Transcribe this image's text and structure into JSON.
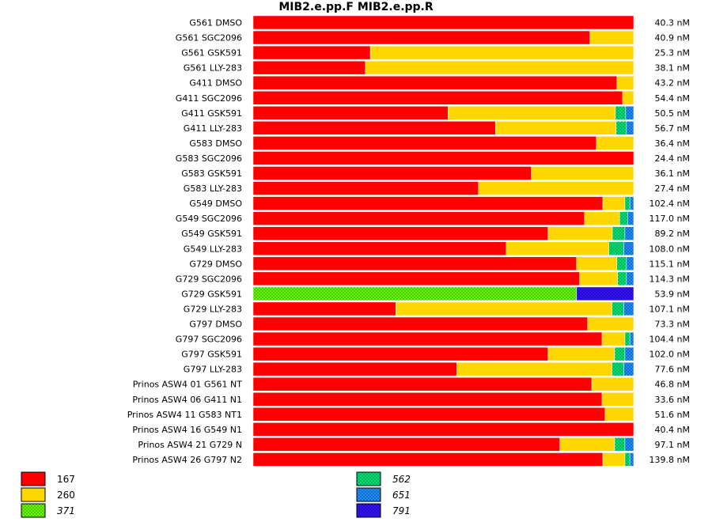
{
  "chart_data": {
    "type": "bar",
    "orientation": "horizontal",
    "stacked": true,
    "normalized": true,
    "title": "MIB2.e.pp.F  MIB2.e.pp.R",
    "xlim": [
      0,
      1
    ],
    "grid": false,
    "legend_placement": "bottom-left",
    "rows": [
      {
        "label": "G561 DMSO",
        "value": "40.3 nM",
        "segments": [
          1.0,
          0,
          0,
          0,
          0,
          0
        ]
      },
      {
        "label": "G561 SGC2096",
        "value": "40.9 nM",
        "segments": [
          0.885,
          0.115,
          0,
          0,
          0,
          0
        ]
      },
      {
        "label": "G561 GSK591",
        "value": "25.3 nM",
        "segments": [
          0.308,
          0.692,
          0,
          0,
          0,
          0
        ]
      },
      {
        "label": "G561 LLY-283",
        "value": "38.1 nM",
        "segments": [
          0.295,
          0.705,
          0,
          0,
          0,
          0
        ]
      },
      {
        "label": "G411 DMSO",
        "value": "43.2 nM",
        "segments": [
          0.956,
          0.044,
          0,
          0,
          0,
          0
        ]
      },
      {
        "label": "G411 SGC2096",
        "value": "54.4 nM",
        "segments": [
          0.971,
          0.029,
          0,
          0,
          0,
          0
        ]
      },
      {
        "label": "G411 GSK591",
        "value": "50.5 nM",
        "segments": [
          0.512,
          0.44,
          0,
          0.027,
          0.021,
          0
        ]
      },
      {
        "label": "G411 LLY-283",
        "value": "56.7 nM",
        "segments": [
          0.637,
          0.317,
          0,
          0.027,
          0.019,
          0
        ]
      },
      {
        "label": "G583 DMSO",
        "value": "36.4 nM",
        "segments": [
          0.902,
          0.098,
          0,
          0,
          0,
          0
        ]
      },
      {
        "label": "G583 SGC2096",
        "value": "24.4 nM",
        "segments": [
          1.0,
          0,
          0,
          0,
          0,
          0
        ]
      },
      {
        "label": "G583 GSK591",
        "value": "36.1 nM",
        "segments": [
          0.731,
          0.269,
          0,
          0,
          0,
          0
        ]
      },
      {
        "label": "G583 LLY-283",
        "value": "27.4 nM",
        "segments": [
          0.592,
          0.408,
          0,
          0,
          0,
          0
        ]
      },
      {
        "label": "G549 DMSO",
        "value": "102.4 nM",
        "segments": [
          0.919,
          0.058,
          0,
          0.013,
          0.01,
          0
        ]
      },
      {
        "label": "G549 SGC2096",
        "value": "117.0 nM",
        "segments": [
          0.871,
          0.092,
          0,
          0.021,
          0.016,
          0
        ]
      },
      {
        "label": "G549 GSK591",
        "value": "89.2 nM",
        "segments": [
          0.775,
          0.169,
          0,
          0.033,
          0.023,
          0
        ]
      },
      {
        "label": "G549 LLY-283",
        "value": "108.0 nM",
        "segments": [
          0.665,
          0.27,
          0,
          0.039,
          0.026,
          0
        ]
      },
      {
        "label": "G729 DMSO",
        "value": "115.1 nM",
        "segments": [
          0.85,
          0.106,
          0,
          0.025,
          0.019,
          0
        ]
      },
      {
        "label": "G729 SGC2096",
        "value": "114.3 nM",
        "segments": [
          0.858,
          0.1,
          0,
          0.023,
          0.019,
          0
        ]
      },
      {
        "label": "G729 GSK591",
        "value": "53.9 nM",
        "segments": [
          0,
          0,
          0.85,
          0,
          0,
          0.15
        ]
      },
      {
        "label": "G729 LLY-283",
        "value": "107.1 nM",
        "segments": [
          0.375,
          0.568,
          0,
          0.031,
          0.026,
          0
        ]
      },
      {
        "label": "G797 DMSO",
        "value": "73.3 nM",
        "segments": [
          0.879,
          0.121,
          0,
          0,
          0,
          0
        ]
      },
      {
        "label": "G797 SGC2096",
        "value": "104.4 nM",
        "segments": [
          0.917,
          0.06,
          0,
          0.013,
          0.01,
          0
        ]
      },
      {
        "label": "G797 GSK591",
        "value": "102.0 nM",
        "segments": [
          0.775,
          0.175,
          0,
          0.027,
          0.023,
          0
        ]
      },
      {
        "label": "G797 LLY-283",
        "value": "77.6 nM",
        "segments": [
          0.535,
          0.408,
          0,
          0.031,
          0.026,
          0
        ]
      },
      {
        "label": "Prinos ASW4 01 G561 NT",
        "value": "46.8 nM",
        "segments": [
          0.89,
          0.11,
          0,
          0,
          0,
          0
        ]
      },
      {
        "label": "Prinos ASW4 06 G411 N1",
        "value": "33.6 nM",
        "segments": [
          0.917,
          0.083,
          0,
          0,
          0,
          0
        ]
      },
      {
        "label": "Prinos ASW4 11 G583 NT1",
        "value": "51.6 nM",
        "segments": [
          0.925,
          0.075,
          0,
          0,
          0,
          0
        ]
      },
      {
        "label": "Prinos ASW4 16 G549 N1",
        "value": "40.4 nM",
        "segments": [
          1.0,
          0,
          0,
          0,
          0,
          0
        ]
      },
      {
        "label": "Prinos ASW4 21 G729 N",
        "value": "97.1 nM",
        "segments": [
          0.806,
          0.144,
          0,
          0.027,
          0.023,
          0
        ]
      },
      {
        "label": "Prinos ASW4 26 G797 N2",
        "value": "139.8 nM",
        "segments": [
          0.919,
          0.058,
          0,
          0.013,
          0.01,
          0
        ]
      }
    ],
    "series": [
      {
        "name": "167",
        "color": "#ff0000",
        "pattern": false,
        "italic": false
      },
      {
        "name": "260",
        "color": "#ffd700",
        "pattern": false,
        "italic": false
      },
      {
        "name": "371",
        "color": "#66ff00",
        "pattern": true,
        "italic": true
      },
      {
        "name": "562",
        "color": "#00e676",
        "pattern": true,
        "italic": true
      },
      {
        "name": "651",
        "color": "#1e90ff",
        "pattern": true,
        "italic": true
      },
      {
        "name": "791",
        "color": "#3311ff",
        "pattern": true,
        "italic": true
      }
    ]
  }
}
